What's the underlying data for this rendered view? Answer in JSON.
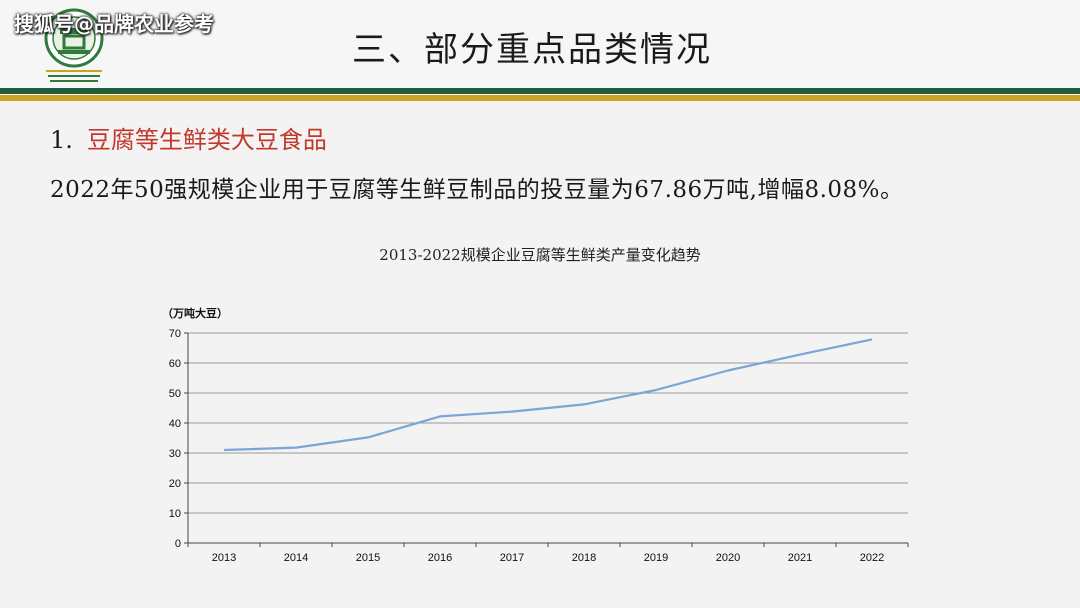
{
  "watermark": "搜狐号@品牌农业参考",
  "slide": {
    "title": "三、部分重点品类情况",
    "section_number": "1.",
    "section_title": "豆腐等生鲜类大豆食品",
    "description": "2022年50强规模企业用于豆腐等生鲜豆制品的投豆量为67.86万吨,增幅8.08%。"
  },
  "colors": {
    "band_green": "#1f5c3a",
    "band_gold": "#c9a227",
    "section_title": "#c0392b",
    "line": "#7aa6d6",
    "grid": "#9a9a9a"
  },
  "chart_data": {
    "type": "line",
    "title": "2013-2022规模企业豆腐等生鲜类产量变化趋势",
    "ylabel": "（万吨大豆）",
    "xlabel": "",
    "categories": [
      "2013",
      "2014",
      "2015",
      "2016",
      "2017",
      "2018",
      "2019",
      "2020",
      "2021",
      "2022"
    ],
    "series": [
      {
        "values": [
          31,
          31.8,
          35.2,
          42.2,
          43.8,
          46.2,
          51,
          57.5,
          62.8,
          67.86
        ]
      }
    ],
    "ylim": [
      0,
      70
    ],
    "yticks": [
      0,
      10,
      20,
      30,
      40,
      50,
      60,
      70
    ],
    "grid": true,
    "legend": "none"
  }
}
